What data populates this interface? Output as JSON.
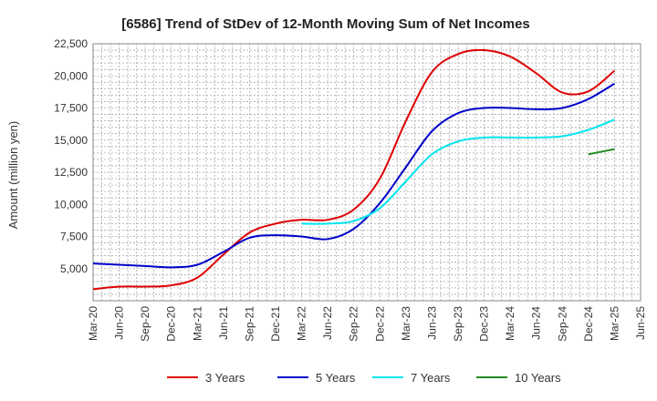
{
  "chart_data": {
    "type": "line",
    "title": "[6586]  Trend of StDev of 12-Month Moving Sum of Net Incomes",
    "ylabel": "Amount (million yen)",
    "xlabel": "",
    "ylim": [
      2500,
      22500
    ],
    "yticks": [
      5000,
      7500,
      10000,
      12500,
      15000,
      17500,
      20000,
      22500
    ],
    "ytick_labels": [
      "5,000",
      "7,500",
      "10,000",
      "12,500",
      "15,000",
      "17,500",
      "20,000",
      "22,500"
    ],
    "x": [
      "Mar-20",
      "Jun-20",
      "Sep-20",
      "Dec-20",
      "Mar-21",
      "Jun-21",
      "Sep-21",
      "Dec-21",
      "Mar-22",
      "Jun-22",
      "Sep-22",
      "Dec-22",
      "Mar-23",
      "Jun-23",
      "Sep-23",
      "Dec-23",
      "Mar-24",
      "Jun-24",
      "Sep-24",
      "Dec-24",
      "Mar-25",
      "Jun-25"
    ],
    "grid": true,
    "legend_position": "bottom",
    "series": [
      {
        "name": "3 Years",
        "color": "#e00000",
        "values": [
          3400,
          3600,
          3600,
          3700,
          4300,
          6100,
          7800,
          8500,
          8800,
          8800,
          9600,
          12000,
          16500,
          20300,
          21700,
          22000,
          21500,
          20200,
          18700,
          18800,
          20400,
          null
        ]
      },
      {
        "name": "5 Years",
        "color": "#0000cc",
        "values": [
          5400,
          5300,
          5200,
          5100,
          5300,
          6300,
          7400,
          7600,
          7500,
          7300,
          8100,
          10100,
          12900,
          15700,
          17100,
          17500,
          17500,
          17400,
          17500,
          18200,
          19400,
          null
        ]
      },
      {
        "name": "7 Years",
        "color": "#00e5ee",
        "values": [
          null,
          null,
          null,
          null,
          null,
          null,
          null,
          null,
          8500,
          8500,
          8700,
          9700,
          11800,
          13900,
          14900,
          15200,
          15200,
          15200,
          15300,
          15800,
          16600,
          null
        ]
      },
      {
        "name": "10 Years",
        "color": "#228b22",
        "values": [
          null,
          null,
          null,
          null,
          null,
          null,
          null,
          null,
          null,
          null,
          null,
          null,
          null,
          null,
          null,
          null,
          null,
          null,
          null,
          13900,
          14300,
          null
        ]
      }
    ]
  }
}
